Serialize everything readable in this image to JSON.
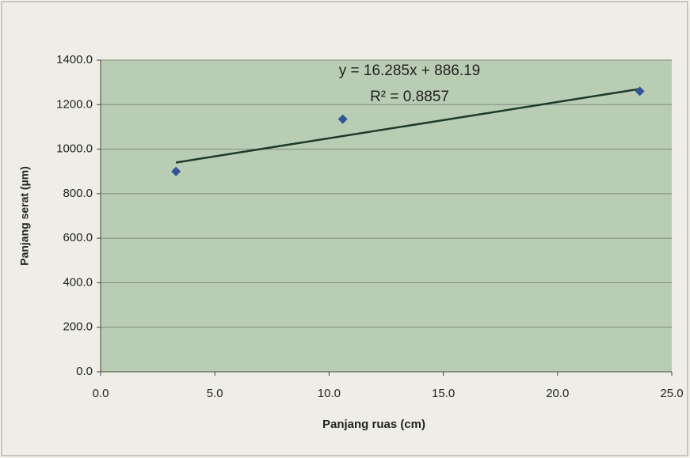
{
  "chart_data": {
    "type": "scatter",
    "x_label": "Panjang ruas (cm)",
    "y_label": "Panjang serat (µm)",
    "series": [
      {
        "color": "#2f5597",
        "x": [
          3.3,
          10.6,
          23.6
        ],
        "values": [
          900,
          1135,
          1260
        ]
      }
    ],
    "trendline": {
      "slope": 16.285,
      "intercept": 886.19,
      "color": "#1f3a2a"
    },
    "annotations": [
      "y = 16.285x + 886.19",
      "R² = 0.8857"
    ],
    "xlim": [
      0,
      25
    ],
    "xticks": [
      {
        "value": 0,
        "label": "0.0"
      },
      {
        "value": 5,
        "label": "5.0"
      },
      {
        "value": 10,
        "label": "10.0"
      },
      {
        "value": 15,
        "label": "15.0"
      },
      {
        "value": 20,
        "label": "20.0"
      },
      {
        "value": 25,
        "label": "25.0"
      }
    ],
    "ylim": [
      0,
      1400
    ],
    "yticks": [
      {
        "value": 0,
        "label": "0.0"
      },
      {
        "value": 200,
        "label": "200.0"
      },
      {
        "value": 400,
        "label": "400.0"
      },
      {
        "value": 600,
        "label": "600.0"
      },
      {
        "value": 800,
        "label": "800.0"
      },
      {
        "value": 1000,
        "label": "1000.0"
      },
      {
        "value": 1200,
        "label": "1200.0"
      },
      {
        "value": 1400,
        "label": "1400.0"
      }
    ],
    "grid": true
  }
}
